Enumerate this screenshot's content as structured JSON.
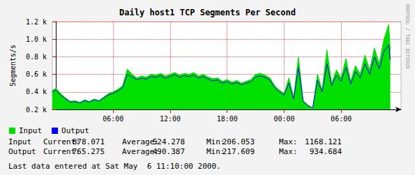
{
  "chart_data": {
    "type": "line",
    "title": "Daily host1 TCP Segments Per Second",
    "y_label": "Segments/s",
    "watermark": "RRDTOOL / TOBI OETIKER",
    "grid": true,
    "legend": "bottom-left",
    "x": [
      -0.4,
      0,
      0.5,
      1,
      1.5,
      2,
      2.5,
      3,
      3.5,
      4,
      4.5,
      5,
      5.5,
      6,
      6.5,
      7,
      7.5,
      8,
      8.5,
      9,
      9.5,
      10,
      10.5,
      11,
      11.5,
      12,
      12.5,
      13,
      13.5,
      14,
      14.5,
      15,
      15.5,
      16,
      16.5,
      17,
      17.5,
      18,
      18.5,
      19,
      19.5,
      20,
      20.5,
      21,
      21.5,
      22,
      22.5,
      23,
      23.5,
      24,
      24.5,
      25,
      25.5,
      26,
      26.5,
      27,
      27.5,
      28,
      28.5,
      29,
      29.5,
      30,
      30.5,
      31,
      31.5,
      32,
      32.5,
      33,
      33.5,
      34,
      34.5,
      35,
      35.17
    ],
    "xlim": [
      -0.4,
      36.3
    ],
    "xticks": [
      {
        "value": 6,
        "label": "06:00"
      },
      {
        "value": 12,
        "label": "12:00"
      },
      {
        "value": 18,
        "label": "18:00"
      },
      {
        "value": 24,
        "label": "00:00"
      },
      {
        "value": 30,
        "label": "06:00"
      }
    ],
    "ylim": [
      200,
      1200
    ],
    "yticks": [
      {
        "value": 200,
        "label": "0.2 k"
      },
      {
        "value": 400,
        "label": "0.4 k"
      },
      {
        "value": 600,
        "label": "0.6 k"
      },
      {
        "value": 800,
        "label": "0.8 k"
      },
      {
        "value": 1000,
        "label": "1.0 k"
      },
      {
        "value": 1200,
        "label": "1.2 k"
      }
    ],
    "series": [
      {
        "name": "Input",
        "type": "area",
        "color": "#00e000",
        "values": [
          420,
          440,
          380,
          330,
          290,
          300,
          280,
          310,
          290,
          320,
          300,
          340,
          380,
          400,
          430,
          470,
          660,
          600,
          560,
          580,
          570,
          600,
          590,
          610,
          580,
          600,
          620,
          590,
          610,
          600,
          620,
          580,
          600,
          570,
          550,
          560,
          520,
          540,
          510,
          530,
          500,
          520,
          540,
          600,
          610,
          590,
          560,
          470,
          420,
          380,
          560,
          330,
          800,
          300,
          250,
          210,
          600,
          420,
          880,
          500,
          650,
          560,
          780,
          520,
          700,
          600,
          820,
          650,
          900,
          720,
          1000,
          1168,
          878
        ]
      },
      {
        "name": "Output",
        "type": "line",
        "color": "#0000ff",
        "values": [
          400,
          420,
          360,
          320,
          285,
          290,
          275,
          300,
          285,
          310,
          295,
          330,
          365,
          385,
          410,
          450,
          600,
          570,
          540,
          555,
          545,
          575,
          565,
          585,
          555,
          575,
          595,
          565,
          585,
          575,
          590,
          555,
          575,
          545,
          525,
          535,
          500,
          515,
          490,
          505,
          480,
          500,
          515,
          570,
          580,
          565,
          535,
          450,
          400,
          365,
          500,
          320,
          680,
          290,
          245,
          218,
          530,
          400,
          720,
          470,
          590,
          520,
          680,
          490,
          630,
          560,
          720,
          600,
          800,
          660,
          860,
          934,
          765
        ]
      }
    ],
    "stat_labels": [
      "Current:",
      "Average:",
      "Min:",
      "Max:"
    ],
    "stats": [
      {
        "name": "Input",
        "values": [
          878.071,
          524.278,
          206.053,
          1168.121
        ]
      },
      {
        "name": "Output",
        "values": [
          765.275,
          490.387,
          217.609,
          934.684
        ]
      }
    ],
    "footer": "Last data entered at Sat May  6 11:10:00 2000."
  }
}
